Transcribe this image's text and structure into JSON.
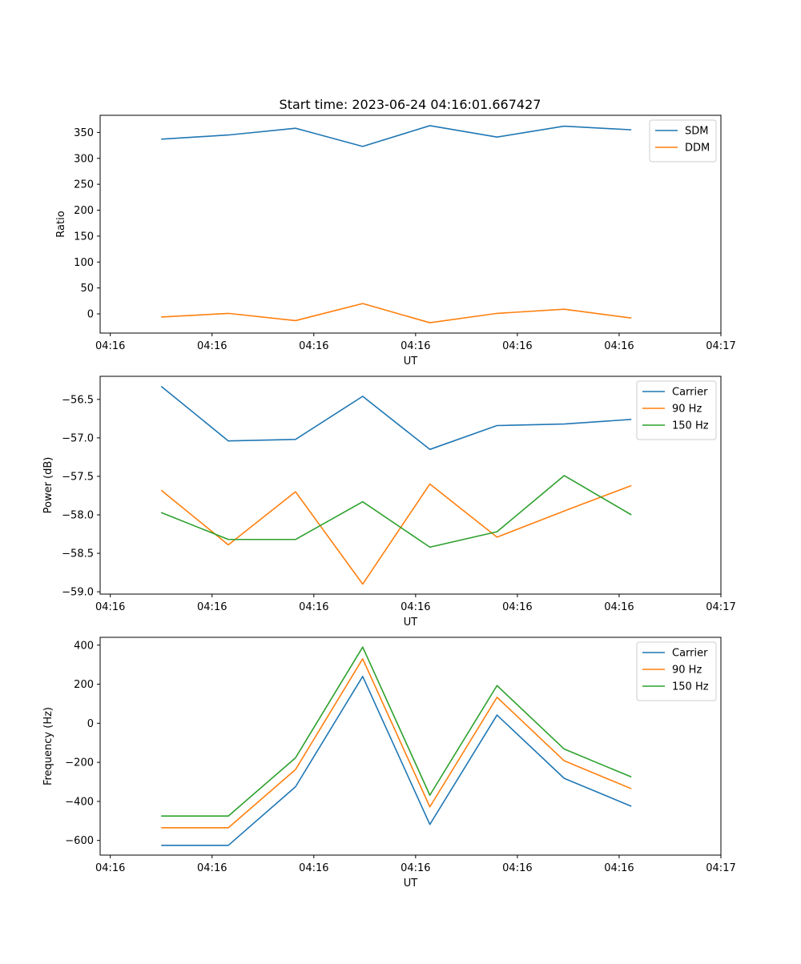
{
  "figure": {
    "title": "Start time: 2023-06-24 04:16:01.667427"
  },
  "colors": {
    "blue": "#1f77b4",
    "orange": "#ff7f0e",
    "green": "#2ca02c"
  },
  "chart_data": [
    {
      "type": "line",
      "title": "Start time: 2023-06-24 04:16:01.667427",
      "xlabel": "UT",
      "ylabel": "Ratio",
      "x": [
        0.5,
        1.16,
        1.82,
        2.48,
        3.14,
        3.8,
        4.46,
        5.12
      ],
      "xlim": [
        -0.1,
        6.0
      ],
      "x_ticks": [
        0,
        1,
        2,
        3,
        4,
        5,
        6
      ],
      "x_tick_labels": [
        "04:16",
        "04:16",
        "04:16",
        "04:16",
        "04:16",
        "04:16",
        "04:17"
      ],
      "ylim": [
        -37,
        383
      ],
      "y_ticks": [
        0,
        50,
        100,
        150,
        200,
        250,
        300,
        350
      ],
      "y_tick_labels": [
        "0",
        "50",
        "100",
        "150",
        "200",
        "250",
        "300",
        "350"
      ],
      "legend_position": "top-right",
      "grid": false,
      "series": [
        {
          "name": "SDM",
          "color": "#1f77b4",
          "values": [
            337,
            345,
            358,
            323,
            363,
            341,
            362,
            355
          ]
        },
        {
          "name": "DDM",
          "color": "#ff7f0e",
          "values": [
            -6,
            1,
            -13,
            20,
            -17,
            1,
            9,
            -8
          ]
        }
      ]
    },
    {
      "type": "line",
      "xlabel": "UT",
      "ylabel": "Power (dB)",
      "x": [
        0.5,
        1.16,
        1.82,
        2.48,
        3.14,
        3.8,
        4.46,
        5.12
      ],
      "xlim": [
        -0.1,
        6.0
      ],
      "x_ticks": [
        0,
        1,
        2,
        3,
        4,
        5,
        6
      ],
      "x_tick_labels": [
        "04:16",
        "04:16",
        "04:16",
        "04:16",
        "04:16",
        "04:16",
        "04:17"
      ],
      "ylim": [
        -59.03,
        -56.2
      ],
      "y_ticks": [
        -59.0,
        -58.5,
        -58.0,
        -57.5,
        -57.0,
        -56.5
      ],
      "y_tick_labels": [
        "−59.0",
        "−58.5",
        "−58.0",
        "−57.5",
        "−57.0",
        "−56.5"
      ],
      "legend_position": "top-right",
      "grid": false,
      "series": [
        {
          "name": "Carrier",
          "color": "#1f77b4",
          "values": [
            -56.33,
            -57.04,
            -57.02,
            -56.46,
            -57.15,
            -56.84,
            -56.82,
            -56.76
          ]
        },
        {
          "name": "90 Hz",
          "color": "#ff7f0e",
          "values": [
            -57.68,
            -58.39,
            -57.7,
            -58.9,
            -57.6,
            -58.29,
            -57.95,
            -57.62
          ]
        },
        {
          "name": "150 Hz",
          "color": "#2ca02c",
          "values": [
            -57.97,
            -58.32,
            -58.32,
            -57.83,
            -58.42,
            -58.22,
            -57.49,
            -58.0
          ]
        }
      ]
    },
    {
      "type": "line",
      "xlabel": "UT",
      "ylabel": "Frequency (Hz)",
      "x": [
        0.5,
        1.16,
        1.82,
        2.48,
        3.14,
        3.8,
        4.46,
        5.12
      ],
      "xlim": [
        -0.1,
        6.0
      ],
      "x_ticks": [
        0,
        1,
        2,
        3,
        4,
        5,
        6
      ],
      "x_tick_labels": [
        "04:16",
        "04:16",
        "04:16",
        "04:16",
        "04:16",
        "04:16",
        "04:17"
      ],
      "ylim": [
        -675,
        440
      ],
      "y_ticks": [
        -600,
        -400,
        -200,
        0,
        200,
        400
      ],
      "y_tick_labels": [
        "−600",
        "−400",
        "−200",
        "0",
        "200",
        "400"
      ],
      "legend_position": "top-right",
      "grid": false,
      "series": [
        {
          "name": "Carrier",
          "color": "#1f77b4",
          "values": [
            -625,
            -625,
            -325,
            240,
            -518,
            42,
            -282,
            -425
          ]
        },
        {
          "name": "90 Hz",
          "color": "#ff7f0e",
          "values": [
            -535,
            -535,
            -237,
            330,
            -428,
            133,
            -192,
            -335
          ]
        },
        {
          "name": "150 Hz",
          "color": "#2ca02c",
          "values": [
            -475,
            -475,
            -177,
            390,
            -368,
            193,
            -132,
            -275
          ]
        }
      ]
    }
  ]
}
